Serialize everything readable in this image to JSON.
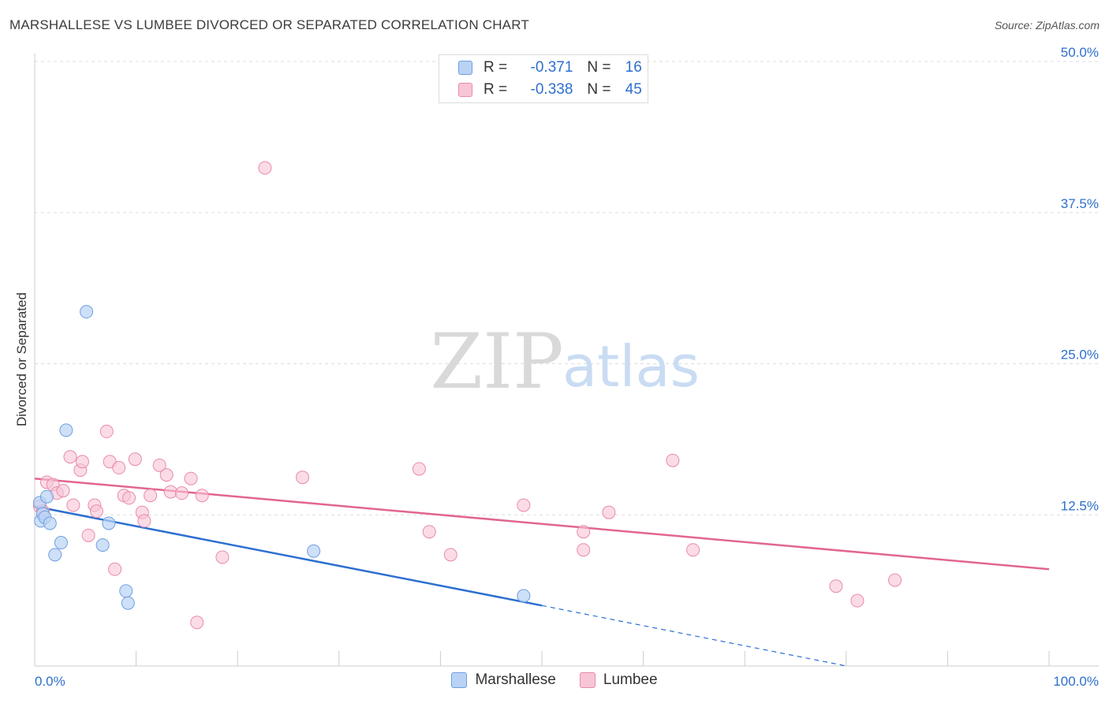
{
  "title": "MARSHALLESE VS LUMBEE DIVORCED OR SEPARATED CORRELATION CHART",
  "source": "Source: ZipAtlas.com",
  "watermark": {
    "zip": "ZIP",
    "atlas": "atlas"
  },
  "legend_top": [
    {
      "r_label": "R =",
      "r_value": "-0.371",
      "n_label": "N =",
      "n_value": "16"
    },
    {
      "r_label": "R =",
      "r_value": "-0.338",
      "n_label": "N =",
      "n_value": "45"
    }
  ],
  "colors": {
    "marshallese_fill": "#b9d3f5",
    "marshallese_stroke": "#6f9ee0",
    "marshallese_line": "#2d6fd0",
    "lumbee_fill": "#f8c5d6",
    "lumbee_stroke": "#e98aab",
    "lumbee_line": "#e26592",
    "tick_label": "#2e6fcc",
    "grid": "#dddddd"
  },
  "chart_data": {
    "type": "scatter",
    "xlabel": "",
    "ylabel": "Divorced or Separated",
    "xlim": [
      0,
      100
    ],
    "ylim": [
      0,
      50
    ],
    "x_tick_labels": [
      "0.0%",
      "100.0%"
    ],
    "y_ticks": [
      12.5,
      25.0,
      37.5,
      50.0
    ],
    "y_tick_labels": [
      "12.5%",
      "25.0%",
      "37.5%",
      "50.0%"
    ],
    "grid": true,
    "legend_position": "bottom",
    "series": [
      {
        "name": "Marshallese",
        "points": [
          [
            0.5,
            13.5
          ],
          [
            0.6,
            12.0
          ],
          [
            0.8,
            12.6
          ],
          [
            1.0,
            12.3
          ],
          [
            1.2,
            14.0
          ],
          [
            1.5,
            11.8
          ],
          [
            2.0,
            9.2
          ],
          [
            2.6,
            10.2
          ],
          [
            3.1,
            19.5
          ],
          [
            5.1,
            29.3
          ],
          [
            6.7,
            10.0
          ],
          [
            7.3,
            11.8
          ],
          [
            9.0,
            6.2
          ],
          [
            9.2,
            5.2
          ],
          [
            27.5,
            9.5
          ],
          [
            48.2,
            5.8
          ]
        ],
        "trend": {
          "x": [
            0,
            50
          ],
          "y": [
            13.2,
            5.0
          ]
        },
        "trend_extended": {
          "x": [
            50,
            80
          ],
          "y": [
            5.0,
            0.0
          ]
        }
      },
      {
        "name": "Lumbee",
        "points": [
          [
            0.5,
            13.2
          ],
          [
            0.8,
            12.8
          ],
          [
            1.2,
            15.2
          ],
          [
            1.8,
            15.0
          ],
          [
            2.2,
            14.3
          ],
          [
            2.8,
            14.5
          ],
          [
            3.5,
            17.3
          ],
          [
            3.8,
            13.3
          ],
          [
            4.5,
            16.2
          ],
          [
            4.7,
            16.9
          ],
          [
            5.3,
            10.8
          ],
          [
            5.9,
            13.3
          ],
          [
            6.1,
            12.8
          ],
          [
            7.1,
            19.4
          ],
          [
            7.4,
            16.9
          ],
          [
            7.9,
            8.0
          ],
          [
            8.3,
            16.4
          ],
          [
            8.8,
            14.1
          ],
          [
            9.3,
            13.9
          ],
          [
            9.9,
            17.1
          ],
          [
            10.6,
            12.7
          ],
          [
            10.8,
            12.0
          ],
          [
            11.4,
            14.1
          ],
          [
            12.3,
            16.6
          ],
          [
            13.0,
            15.8
          ],
          [
            13.4,
            14.4
          ],
          [
            14.5,
            14.3
          ],
          [
            15.4,
            15.5
          ],
          [
            16.0,
            3.6
          ],
          [
            16.5,
            14.1
          ],
          [
            18.5,
            9.0
          ],
          [
            22.7,
            41.2
          ],
          [
            26.4,
            15.6
          ],
          [
            37.9,
            16.3
          ],
          [
            38.9,
            11.1
          ],
          [
            41.0,
            9.2
          ],
          [
            48.2,
            13.3
          ],
          [
            54.1,
            11.1
          ],
          [
            54.1,
            9.6
          ],
          [
            56.6,
            12.7
          ],
          [
            62.9,
            17.0
          ],
          [
            64.9,
            9.6
          ],
          [
            79.0,
            6.6
          ],
          [
            81.1,
            5.4
          ],
          [
            84.8,
            7.1
          ]
        ],
        "trend": {
          "x": [
            0,
            100
          ],
          "y": [
            15.5,
            8.0
          ]
        }
      }
    ]
  }
}
